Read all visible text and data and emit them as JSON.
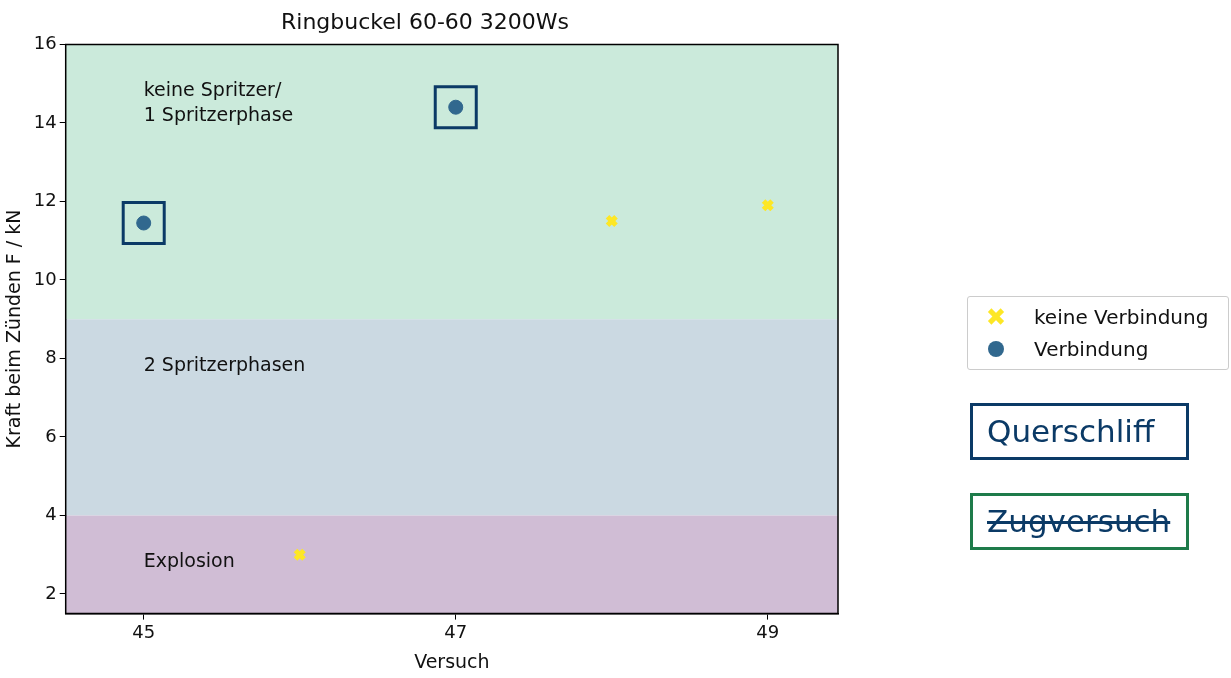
{
  "chart_data": {
    "type": "scatter",
    "title": "Ringbuckel 60-60 3200Ws",
    "xlabel": "Versuch",
    "ylabel": "Kraft beim Zünden F / kN",
    "xlim": [
      44.5,
      49.45
    ],
    "xticks": [
      45,
      47,
      49
    ],
    "ylim": [
      1.5,
      16
    ],
    "yticks": [
      2,
      4,
      6,
      8,
      10,
      12,
      14,
      16
    ],
    "grid": false,
    "legend": "right",
    "series": [
      {
        "name": "keine Verbindung",
        "color": "#fde725",
        "marker": "cross",
        "x": [
          46,
          48,
          49
        ],
        "values": [
          3.0,
          11.5,
          11.9
        ]
      },
      {
        "name": "Verbindung",
        "color": "#31688e",
        "marker": "circle",
        "x": [
          45,
          47
        ],
        "values": [
          11.45,
          14.4
        ]
      },
      {
        "name": "Querschliff",
        "color": "#0b3a66",
        "marker": "square",
        "x": [
          45,
          47
        ],
        "values": [
          11.45,
          14.4
        ]
      }
    ],
    "bands": [
      {
        "axis": "y",
        "from": 9,
        "to": 16,
        "label": "keine Spritzer/\n1 Spritzerphase",
        "color": "#cbeadb"
      },
      {
        "axis": "y",
        "from": 4,
        "to": 9,
        "label": "2 Spritzerphasen",
        "color": "#cbd9e2"
      },
      {
        "axis": "y",
        "from": 1.5,
        "to": 4,
        "label": "Explosion",
        "color": "#d0bdd5"
      }
    ],
    "annotations": [
      "Zugversuch"
    ]
  }
}
